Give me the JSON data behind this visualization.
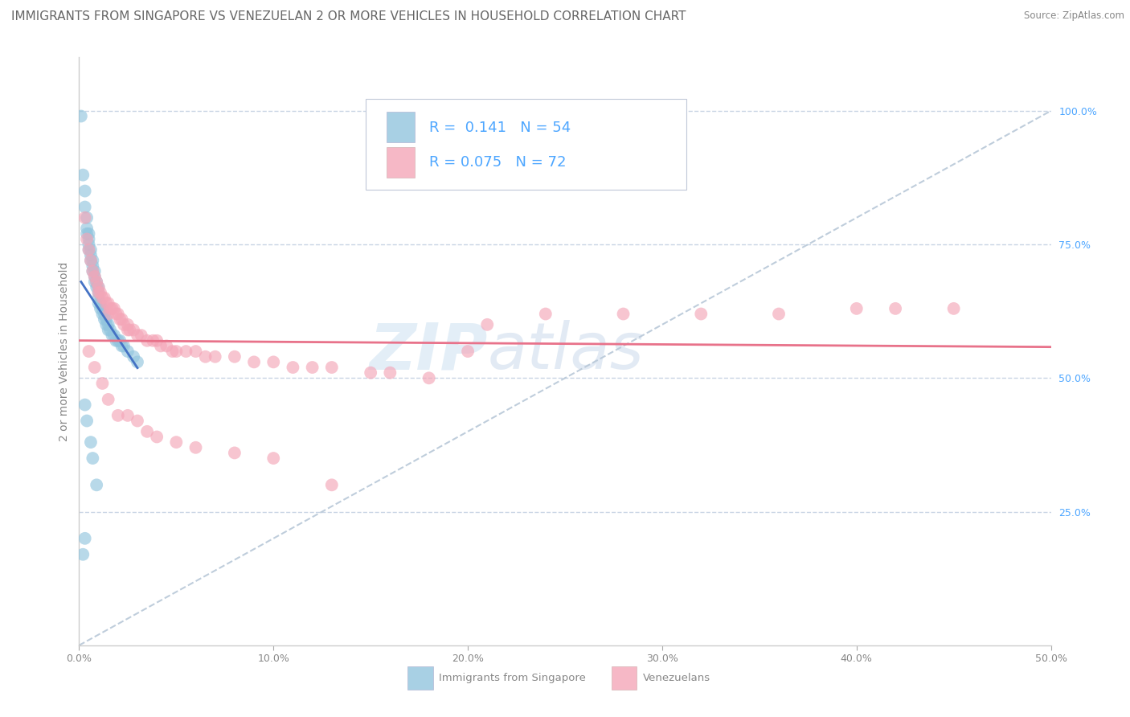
{
  "title": "IMMIGRANTS FROM SINGAPORE VS VENEZUELAN 2 OR MORE VEHICLES IN HOUSEHOLD CORRELATION CHART",
  "source": "Source: ZipAtlas.com",
  "ylabel": "2 or more Vehicles in Household",
  "singapore_label": "Immigrants from Singapore",
  "venezuelan_label": "Venezuelans",
  "xlim": [
    0.0,
    0.5
  ],
  "ylim": [
    0.0,
    1.1
  ],
  "yticks": [
    0.25,
    0.5,
    0.75,
    1.0
  ],
  "ytick_labels": [
    "25.0%",
    "50.0%",
    "75.0%",
    "100.0%"
  ],
  "xticks": [
    0.0,
    0.1,
    0.2,
    0.3,
    0.4,
    0.5
  ],
  "xtick_labels": [
    "0.0%",
    "10.0%",
    "20.0%",
    "30.0%",
    "40.0%",
    "50.0%"
  ],
  "blue_color": "#92c5de",
  "pink_color": "#f4a6b8",
  "trendline_blue": "#4472c4",
  "trendline_pink": "#e8728a",
  "dashed_line_color": "#b8c8d8",
  "background_color": "#ffffff",
  "grid_color": "#c8d4e4",
  "right_axis_color": "#4da6ff",
  "singapore_x": [
    0.001,
    0.002,
    0.003,
    0.003,
    0.004,
    0.004,
    0.004,
    0.005,
    0.005,
    0.005,
    0.005,
    0.006,
    0.006,
    0.006,
    0.007,
    0.007,
    0.007,
    0.008,
    0.008,
    0.008,
    0.009,
    0.009,
    0.01,
    0.01,
    0.01,
    0.01,
    0.011,
    0.011,
    0.012,
    0.012,
    0.013,
    0.013,
    0.014,
    0.014,
    0.015,
    0.015,
    0.016,
    0.017,
    0.018,
    0.019,
    0.02,
    0.021,
    0.022,
    0.023,
    0.025,
    0.028,
    0.03,
    0.003,
    0.004,
    0.006,
    0.007,
    0.009,
    0.003,
    0.002
  ],
  "singapore_y": [
    0.99,
    0.88,
    0.85,
    0.82,
    0.8,
    0.78,
    0.77,
    0.77,
    0.76,
    0.75,
    0.74,
    0.74,
    0.73,
    0.72,
    0.72,
    0.71,
    0.7,
    0.7,
    0.69,
    0.68,
    0.68,
    0.67,
    0.67,
    0.66,
    0.65,
    0.64,
    0.64,
    0.63,
    0.63,
    0.62,
    0.62,
    0.61,
    0.61,
    0.6,
    0.6,
    0.59,
    0.59,
    0.58,
    0.58,
    0.57,
    0.57,
    0.57,
    0.56,
    0.56,
    0.55,
    0.54,
    0.53,
    0.45,
    0.42,
    0.38,
    0.35,
    0.3,
    0.2,
    0.17
  ],
  "venezuelan_x": [
    0.003,
    0.004,
    0.005,
    0.006,
    0.007,
    0.008,
    0.009,
    0.01,
    0.01,
    0.011,
    0.012,
    0.013,
    0.014,
    0.015,
    0.015,
    0.016,
    0.017,
    0.018,
    0.019,
    0.02,
    0.021,
    0.022,
    0.023,
    0.025,
    0.025,
    0.026,
    0.028,
    0.03,
    0.032,
    0.035,
    0.038,
    0.04,
    0.042,
    0.045,
    0.048,
    0.05,
    0.055,
    0.06,
    0.065,
    0.07,
    0.08,
    0.09,
    0.1,
    0.11,
    0.12,
    0.13,
    0.15,
    0.16,
    0.18,
    0.2,
    0.21,
    0.24,
    0.28,
    0.32,
    0.36,
    0.4,
    0.42,
    0.45,
    0.005,
    0.008,
    0.012,
    0.015,
    0.02,
    0.025,
    0.03,
    0.035,
    0.04,
    0.05,
    0.06,
    0.08,
    0.1,
    0.13
  ],
  "venezuelan_y": [
    0.8,
    0.76,
    0.74,
    0.72,
    0.7,
    0.69,
    0.68,
    0.67,
    0.66,
    0.66,
    0.65,
    0.65,
    0.64,
    0.64,
    0.62,
    0.63,
    0.63,
    0.63,
    0.62,
    0.62,
    0.61,
    0.61,
    0.6,
    0.6,
    0.59,
    0.59,
    0.59,
    0.58,
    0.58,
    0.57,
    0.57,
    0.57,
    0.56,
    0.56,
    0.55,
    0.55,
    0.55,
    0.55,
    0.54,
    0.54,
    0.54,
    0.53,
    0.53,
    0.52,
    0.52,
    0.52,
    0.51,
    0.51,
    0.5,
    0.55,
    0.6,
    0.62,
    0.62,
    0.62,
    0.62,
    0.63,
    0.63,
    0.63,
    0.55,
    0.52,
    0.49,
    0.46,
    0.43,
    0.43,
    0.42,
    0.4,
    0.39,
    0.38,
    0.37,
    0.36,
    0.35,
    0.3
  ],
  "watermark_zip": "ZIP",
  "watermark_atlas": "atlas",
  "title_fontsize": 11,
  "axis_label_fontsize": 10,
  "tick_fontsize": 9,
  "legend_fontsize": 13
}
